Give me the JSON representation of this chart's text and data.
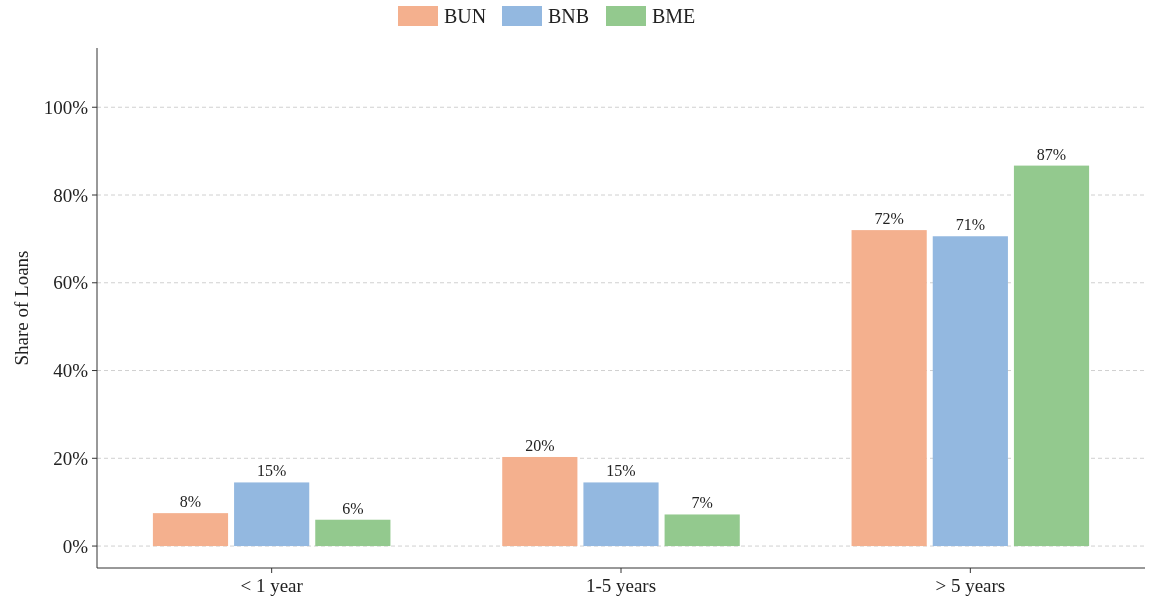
{
  "chart_data": {
    "type": "bar",
    "ylabel": "Share of Loans",
    "categories": [
      "< 1 year",
      "1-5 years",
      "> 5 years"
    ],
    "series": [
      {
        "name": "BUN",
        "color": "#f4b08e",
        "values": [
          7.5,
          20.3,
          72
        ],
        "value_labels": [
          "8%",
          "20%",
          "72%"
        ]
      },
      {
        "name": "BNB",
        "color": "#93b8e0",
        "values": [
          14.5,
          14.5,
          70.6
        ],
        "value_labels": [
          "15%",
          "15%",
          "71%"
        ]
      },
      {
        "name": "BME",
        "color": "#93c98e",
        "values": [
          6,
          7.2,
          86.7
        ],
        "value_labels": [
          "6%",
          "7%",
          "87%"
        ]
      }
    ],
    "ylim": [
      -5,
      113.5
    ],
    "yticks": [
      {
        "value": 0,
        "label": "0%"
      },
      {
        "value": 20,
        "label": "20%"
      },
      {
        "value": 40,
        "label": "40%"
      },
      {
        "value": 60,
        "label": "60%"
      },
      {
        "value": 80,
        "label": "80%"
      },
      {
        "value": 100,
        "label": "100%"
      }
    ],
    "grid": "y",
    "legend": "top"
  }
}
